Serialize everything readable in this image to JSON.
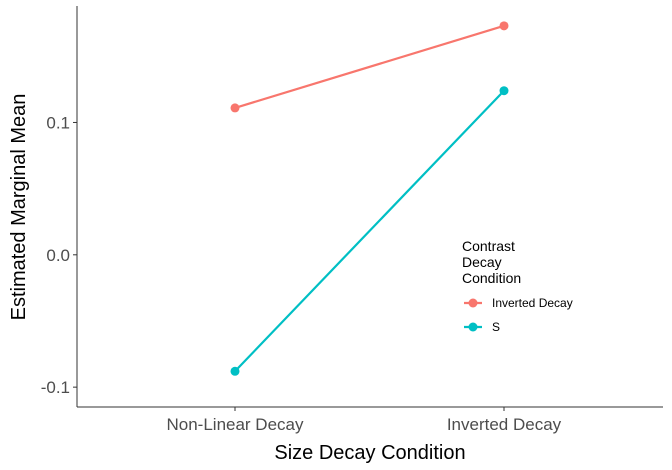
{
  "chart_data": {
    "type": "line",
    "xlabel": "Size Decay Condition",
    "ylabel": "Estimated Marginal Mean",
    "categories": [
      "Non-Linear Decay",
      "Inverted Decay"
    ],
    "ylim": [
      -0.115,
      0.188
    ],
    "yticks": [
      0.1,
      0.0,
      -0.1
    ],
    "ytick_labels": [
      "0.1",
      "0.0",
      "-0.1"
    ],
    "grid": false,
    "legend": {
      "title_lines": [
        "Contrast",
        "Decay",
        "Condition"
      ],
      "placement": "right-center-inside"
    },
    "series": [
      {
        "name": "Inverted Decay",
        "color": "#F8766D",
        "values": [
          0.111,
          0.173
        ]
      },
      {
        "name": "S",
        "color": "#00BFC4",
        "values": [
          -0.088,
          0.124
        ]
      }
    ]
  }
}
